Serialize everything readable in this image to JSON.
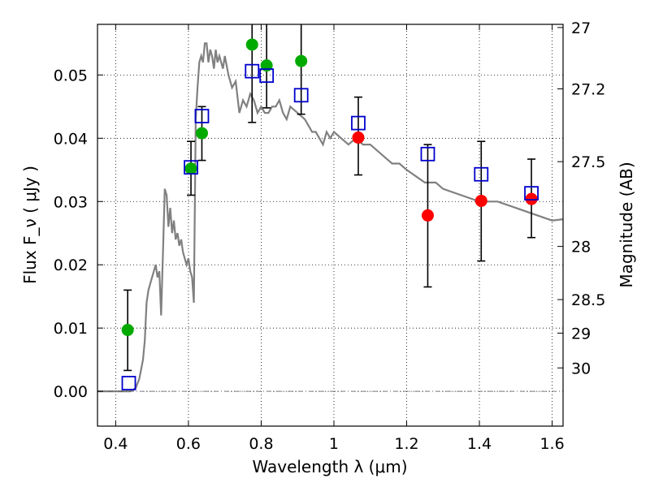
{
  "chart_data": {
    "type": "scatter",
    "xlabel": "Wavelength  λ (μm)",
    "ylabel": "Flux  F_ν  ( μJy )",
    "ylabel_right": "Magnitude (AB)",
    "xlim": [
      0.35,
      1.63
    ],
    "ylim": [
      -0.0055,
      0.058
    ],
    "x_ticks": [
      {
        "v": 0.4,
        "label": "0.4"
      },
      {
        "v": 0.6,
        "label": "0.6"
      },
      {
        "v": 0.8,
        "label": "0.8"
      },
      {
        "v": 1.0,
        "label": "1"
      },
      {
        "v": 1.2,
        "label": "1.2"
      },
      {
        "v": 1.4,
        "label": "1.4"
      },
      {
        "v": 1.6,
        "label": "1.6"
      }
    ],
    "y_ticks": [
      {
        "v": 0.0,
        "label": "0.00"
      },
      {
        "v": 0.01,
        "label": "0.01"
      },
      {
        "v": 0.02,
        "label": "0.02"
      },
      {
        "v": 0.03,
        "label": "0.03"
      },
      {
        "v": 0.04,
        "label": "0.04"
      },
      {
        "v": 0.05,
        "label": "0.05"
      }
    ],
    "right_ticks": [
      {
        "flux": 0.0575,
        "label": "27"
      },
      {
        "flux": 0.0478,
        "label": "27.2"
      },
      {
        "flux": 0.0363,
        "label": "27.5"
      },
      {
        "flux": 0.0229,
        "label": "28"
      },
      {
        "flux": 0.0145,
        "label": "28.5"
      },
      {
        "flux": 0.0092,
        "label": "29"
      },
      {
        "flux": 0.0037,
        "label": "30"
      }
    ],
    "grid": true,
    "model_spectrum": {
      "color": "#808080",
      "x": [
        0.35,
        0.44,
        0.455,
        0.465,
        0.475,
        0.48,
        0.485,
        0.49,
        0.495,
        0.5,
        0.505,
        0.51,
        0.515,
        0.52,
        0.525,
        0.53,
        0.535,
        0.54,
        0.545,
        0.55,
        0.555,
        0.56,
        0.565,
        0.57,
        0.575,
        0.58,
        0.585,
        0.59,
        0.595,
        0.6,
        0.605,
        0.61,
        0.615,
        0.62,
        0.625,
        0.63,
        0.635,
        0.64,
        0.645,
        0.65,
        0.655,
        0.66,
        0.665,
        0.67,
        0.675,
        0.68,
        0.685,
        0.69,
        0.695,
        0.7,
        0.71,
        0.72,
        0.73,
        0.74,
        0.75,
        0.76,
        0.77,
        0.78,
        0.79,
        0.8,
        0.81,
        0.82,
        0.83,
        0.84,
        0.85,
        0.86,
        0.87,
        0.88,
        0.9,
        0.92,
        0.94,
        0.95,
        0.96,
        0.97,
        0.98,
        0.99,
        1.0,
        1.02,
        1.04,
        1.06,
        1.08,
        1.1,
        1.12,
        1.14,
        1.16,
        1.18,
        1.2,
        1.25,
        1.28,
        1.3,
        1.35,
        1.4,
        1.45,
        1.5,
        1.55,
        1.6,
        1.63
      ],
      "y": [
        0.0,
        0.0,
        0.0005,
        0.002,
        0.005,
        0.008,
        0.014,
        0.016,
        0.017,
        0.018,
        0.019,
        0.02,
        0.018,
        0.019,
        0.012,
        0.022,
        0.032,
        0.031,
        0.026,
        0.029,
        0.025,
        0.027,
        0.024,
        0.025,
        0.023,
        0.024,
        0.022,
        0.021,
        0.02,
        0.021,
        0.019,
        0.018,
        0.014,
        0.043,
        0.048,
        0.052,
        0.053,
        0.052,
        0.055,
        0.055,
        0.052,
        0.054,
        0.053,
        0.051,
        0.054,
        0.052,
        0.053,
        0.052,
        0.051,
        0.053,
        0.05,
        0.048,
        0.049,
        0.044,
        0.046,
        0.045,
        0.047,
        0.046,
        0.044,
        0.045,
        0.044,
        0.044,
        0.045,
        0.045,
        0.046,
        0.044,
        0.043,
        0.045,
        0.044,
        0.043,
        0.041,
        0.041,
        0.04,
        0.039,
        0.041,
        0.04,
        0.041,
        0.04,
        0.039,
        0.04,
        0.039,
        0.039,
        0.038,
        0.037,
        0.036,
        0.036,
        0.035,
        0.033,
        0.033,
        0.032,
        0.031,
        0.03,
        0.03,
        0.029,
        0.028,
        0.027,
        0.0272
      ]
    },
    "series": [
      {
        "marker": "circle",
        "color": "#00aa00",
        "points": [
          {
            "x": 0.433,
            "y": 0.0097,
            "yerr_low": 0.0033,
            "yerr_high": 0.016
          },
          {
            "x": 0.607,
            "y": 0.0352,
            "yerr_low": 0.031,
            "yerr_high": 0.0395
          },
          {
            "x": 0.637,
            "y": 0.0408,
            "yerr_low": 0.0365,
            "yerr_high": 0.045
          },
          {
            "x": 0.775,
            "y": 0.0548,
            "yerr_low": 0.0425,
            "yerr_high": 0.0585
          },
          {
            "x": 0.815,
            "y": 0.0515,
            "yerr_low": 0.0448,
            "yerr_high": 0.0585
          },
          {
            "x": 0.91,
            "y": 0.0522,
            "yerr_low": 0.0438,
            "yerr_high": 0.0585
          }
        ]
      },
      {
        "marker": "circle",
        "color": "#ff0000",
        "points": [
          {
            "x": 1.067,
            "y": 0.0401,
            "yerr_low": 0.0342,
            "yerr_high": 0.0465
          },
          {
            "x": 1.258,
            "y": 0.0278,
            "yerr_low": 0.0165,
            "yerr_high": 0.039
          },
          {
            "x": 1.405,
            "y": 0.0301,
            "yerr_low": 0.0206,
            "yerr_high": 0.0395
          },
          {
            "x": 1.543,
            "y": 0.0304,
            "yerr_low": 0.0243,
            "yerr_high": 0.0367
          }
        ]
      },
      {
        "marker": "open-square",
        "color": "#0000cc",
        "points": [
          {
            "x": 0.436,
            "y": 0.0013
          },
          {
            "x": 0.607,
            "y": 0.0354
          },
          {
            "x": 0.637,
            "y": 0.0435
          },
          {
            "x": 0.775,
            "y": 0.0506
          },
          {
            "x": 0.815,
            "y": 0.0499
          },
          {
            "x": 0.91,
            "y": 0.0468
          },
          {
            "x": 1.067,
            "y": 0.0424
          },
          {
            "x": 1.258,
            "y": 0.0375
          },
          {
            "x": 1.405,
            "y": 0.0343
          },
          {
            "x": 1.543,
            "y": 0.0313
          }
        ]
      }
    ]
  }
}
